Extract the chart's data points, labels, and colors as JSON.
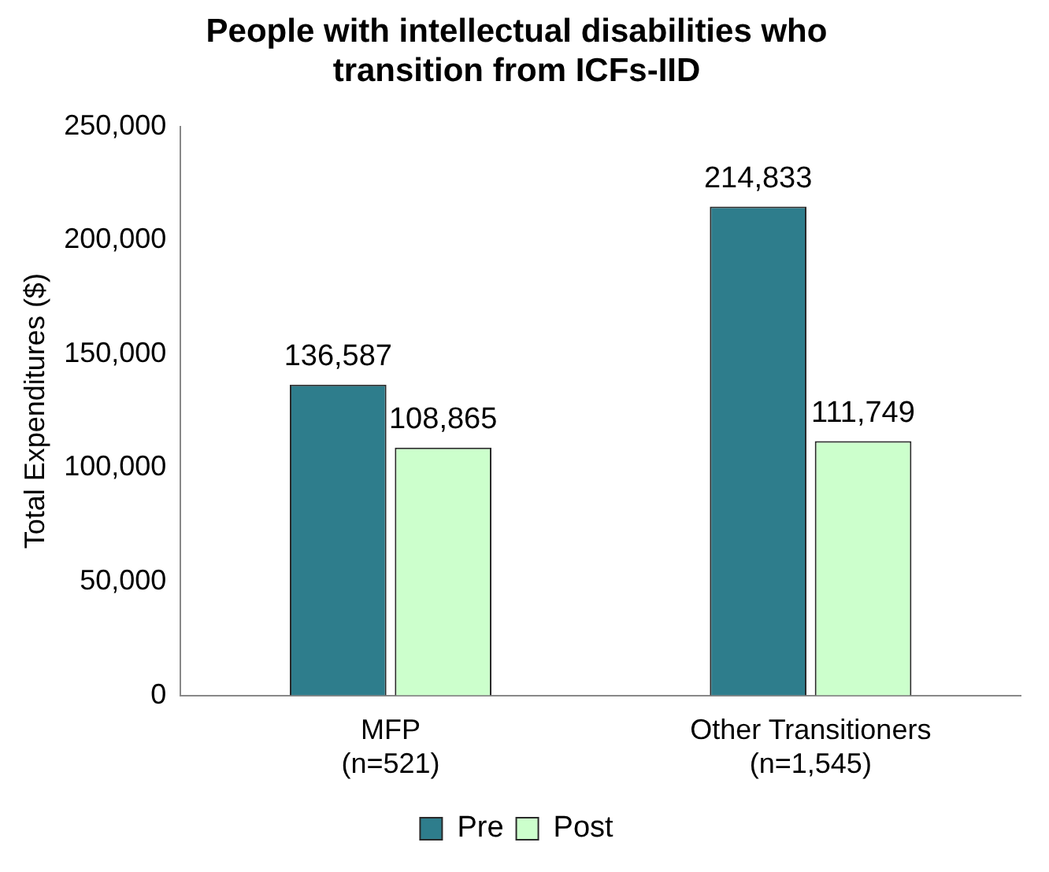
{
  "chart_data": {
    "type": "bar",
    "title": "People with intellectual disabilities who\ntransition from ICFs-IID",
    "ylabel": "Total Expenditures ($)",
    "categories": [
      "MFP\n(n=521)",
      "Other Transitioners\n(n=1,545)"
    ],
    "series": [
      {
        "name": "Pre",
        "color": "#2e7d8c",
        "values": [
          136587,
          214833
        ],
        "value_labels": [
          "136,587",
          "214,833"
        ]
      },
      {
        "name": "Post",
        "color": "#ccffcc",
        "values": [
          108865,
          111749
        ],
        "value_labels": [
          "108,865",
          "111,749"
        ]
      }
    ],
    "ylim": [
      0,
      250000
    ],
    "yticks": [
      {
        "value": 0,
        "label": "0"
      },
      {
        "value": 50000,
        "label": "50,000"
      },
      {
        "value": 100000,
        "label": "100,000"
      },
      {
        "value": 150000,
        "label": "150,000"
      },
      {
        "value": 200000,
        "label": "200,000"
      },
      {
        "value": 250000,
        "label": "250,000"
      }
    ],
    "legend": "bottom",
    "grid": false
  }
}
